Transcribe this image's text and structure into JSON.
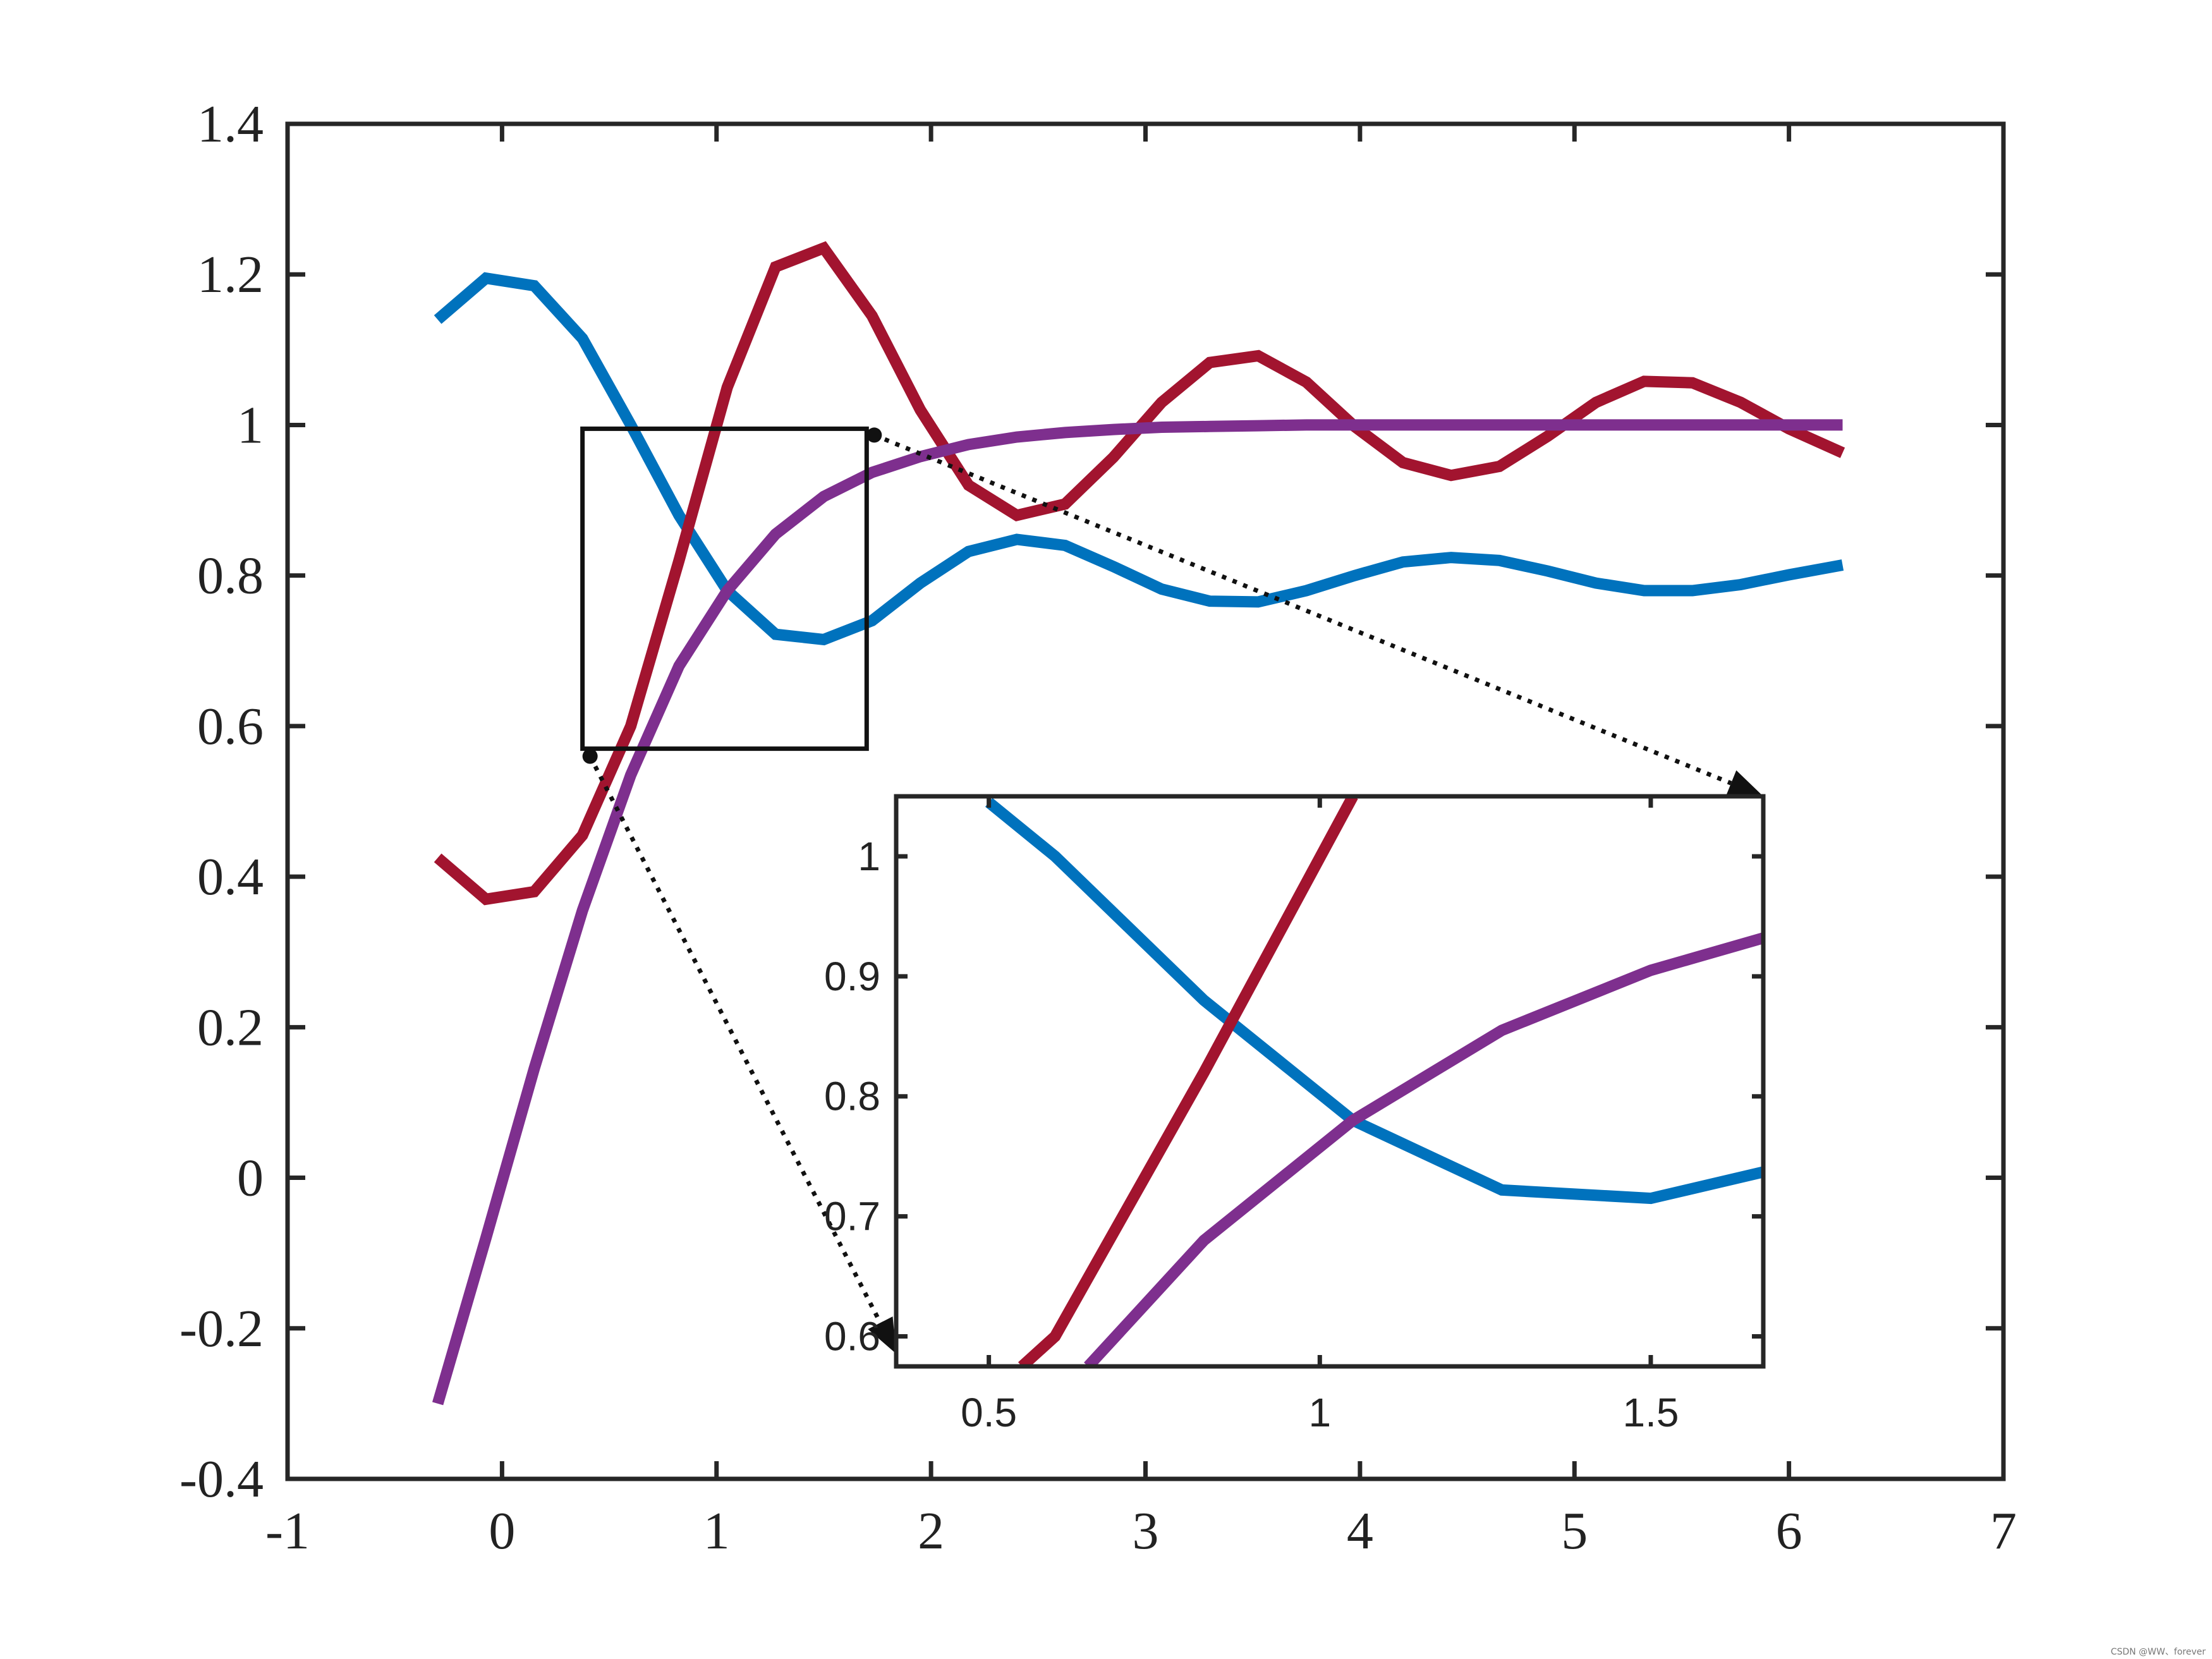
{
  "chart_data": [
    {
      "type": "line",
      "title": "",
      "xlabel": "",
      "ylabel": "",
      "xlim": [
        -1,
        7
      ],
      "ylim": [
        -0.4,
        1.4
      ],
      "x_ticks": [
        "-1",
        "0",
        "1",
        "2",
        "3",
        "4",
        "5",
        "6",
        "7"
      ],
      "y_ticks": [
        "1.4",
        "1.2",
        "1",
        "0.8",
        "0.6",
        "0.4",
        "0.2",
        "0",
        "-0.2",
        "-0.4"
      ],
      "grid": false,
      "colors": [
        "#0072BD",
        "#A2142F",
        "#7E2F8E"
      ],
      "series": [
        {
          "color": "#0072BD",
          "x": [
            -0.3,
            -0.075,
            0.15,
            0.375,
            0.6,
            0.825,
            1.05,
            1.275,
            1.5,
            1.725,
            1.95,
            2.175,
            2.4,
            2.625,
            2.85,
            3.075,
            3.3,
            3.525,
            3.75,
            3.975,
            4.2,
            4.425,
            4.65,
            4.875,
            5.1,
            5.325,
            5.55,
            5.775,
            6.0,
            6.25
          ],
          "values": [
            1.14,
            1.195,
            1.185,
            1.115,
            1.0,
            0.88,
            0.78,
            0.722,
            0.715,
            0.74,
            0.79,
            0.832,
            0.848,
            0.84,
            0.812,
            0.782,
            0.766,
            0.765,
            0.78,
            0.8,
            0.818,
            0.824,
            0.82,
            0.806,
            0.79,
            0.78,
            0.78,
            0.788,
            0.801,
            0.814
          ]
        },
        {
          "color": "#A2142F",
          "x": [
            -0.3,
            -0.075,
            0.15,
            0.375,
            0.6,
            0.825,
            1.05,
            1.275,
            1.5,
            1.725,
            1.95,
            2.175,
            2.4,
            2.625,
            2.85,
            3.075,
            3.3,
            3.525,
            3.75,
            3.975,
            4.2,
            4.425,
            4.65,
            4.875,
            5.1,
            5.325,
            5.55,
            5.775,
            6.0,
            6.25
          ],
          "values": [
            0.425,
            0.37,
            0.38,
            0.455,
            0.6,
            0.82,
            1.05,
            1.21,
            1.235,
            1.145,
            1.02,
            0.92,
            0.88,
            0.895,
            0.957,
            1.03,
            1.083,
            1.092,
            1.057,
            0.998,
            0.95,
            0.933,
            0.945,
            0.985,
            1.03,
            1.058,
            1.056,
            1.03,
            0.995,
            0.963
          ]
        },
        {
          "color": "#7E2F8E",
          "x": [
            -0.3,
            -0.075,
            0.15,
            0.375,
            0.6,
            0.825,
            1.05,
            1.275,
            1.5,
            1.725,
            1.95,
            2.175,
            2.4,
            2.625,
            2.85,
            3.075,
            3.3,
            3.525,
            3.75,
            3.975,
            4.2,
            4.425,
            4.65,
            4.875,
            5.1,
            5.325,
            5.55,
            5.775,
            6.0,
            6.25
          ],
          "values": [
            -0.3,
            -0.08,
            0.145,
            0.355,
            0.535,
            0.68,
            0.78,
            0.855,
            0.905,
            0.937,
            0.958,
            0.974,
            0.984,
            0.99,
            0.994,
            0.997,
            0.998,
            0.999,
            1.0,
            1.0,
            1.0,
            1.0,
            1.0,
            1.0,
            1.0,
            1.0,
            1.0,
            1.0,
            1.0,
            1.0
          ]
        }
      ],
      "zoom_region": {
        "xlim": [
          0.375,
          1.7
        ],
        "ylim": [
          0.57,
          0.995
        ]
      }
    },
    {
      "type": "line",
      "title": "",
      "xlabel": "",
      "ylabel": "",
      "xlim": [
        0.36,
        1.67
      ],
      "ylim": [
        0.575,
        1.05
      ],
      "x_ticks": [
        "0.5",
        "1",
        "1.5"
      ],
      "y_ticks": [
        "1",
        "0.9",
        "0.8",
        "0.7",
        "0.6"
      ],
      "grid": false,
      "series": [
        {
          "color": "#0072BD",
          "x": [
            0.5,
            0.6,
            0.825,
            1.05,
            1.275,
            1.5,
            1.67
          ],
          "values": [
            1.045,
            1.0,
            0.88,
            0.78,
            0.722,
            0.715,
            0.737
          ]
        },
        {
          "color": "#A2142F",
          "x": [
            0.55,
            0.6,
            0.825,
            1.05
          ],
          "values": [
            0.575,
            0.6,
            0.82,
            1.05
          ]
        },
        {
          "color": "#7E2F8E",
          "x": [
            0.65,
            0.825,
            1.05,
            1.275,
            1.5,
            1.67
          ],
          "values": [
            0.575,
            0.68,
            0.78,
            0.855,
            0.905,
            0.932
          ]
        }
      ]
    }
  ],
  "watermark": "CSDN @WW、forever"
}
